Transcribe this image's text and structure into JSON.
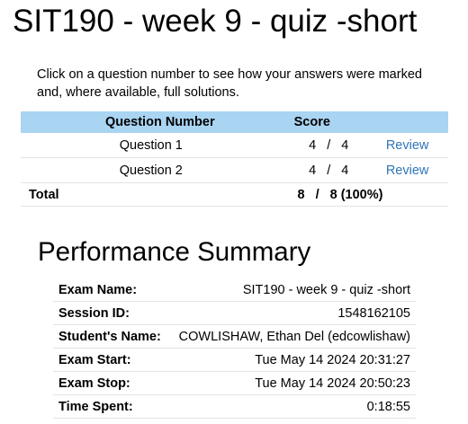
{
  "page": {
    "title": "SIT190 - week 9 - quiz -short",
    "intro": "Click on a question number to see how your answers were marked and, where available, full solutions."
  },
  "score_table": {
    "headers": {
      "question": "Question Number",
      "score": "Score"
    },
    "rows": [
      {
        "question": "Question 1",
        "earned": "4",
        "separator": "/",
        "possible": "4",
        "review": "Review"
      },
      {
        "question": "Question 2",
        "earned": "4",
        "separator": "/",
        "possible": "4",
        "review": "Review"
      }
    ],
    "total": {
      "label": "Total",
      "earned": "8",
      "separator": "/",
      "possible": "8 (100%)"
    }
  },
  "performance_summary": {
    "heading": "Performance Summary",
    "rows": [
      {
        "label": "Exam Name:",
        "value": "SIT190 - week 9 - quiz -short"
      },
      {
        "label": "Session ID:",
        "value": "1548162105"
      },
      {
        "label": "Student's Name:",
        "value": "COWLISHAW, Ethan Del (edcowlishaw)"
      },
      {
        "label": "Exam Start:",
        "value": "Tue May 14 2024 20:31:27"
      },
      {
        "label": "Exam Stop:",
        "value": "Tue May 14 2024 20:50:23"
      },
      {
        "label": "Time Spent:",
        "value": "0:18:55"
      }
    ]
  }
}
